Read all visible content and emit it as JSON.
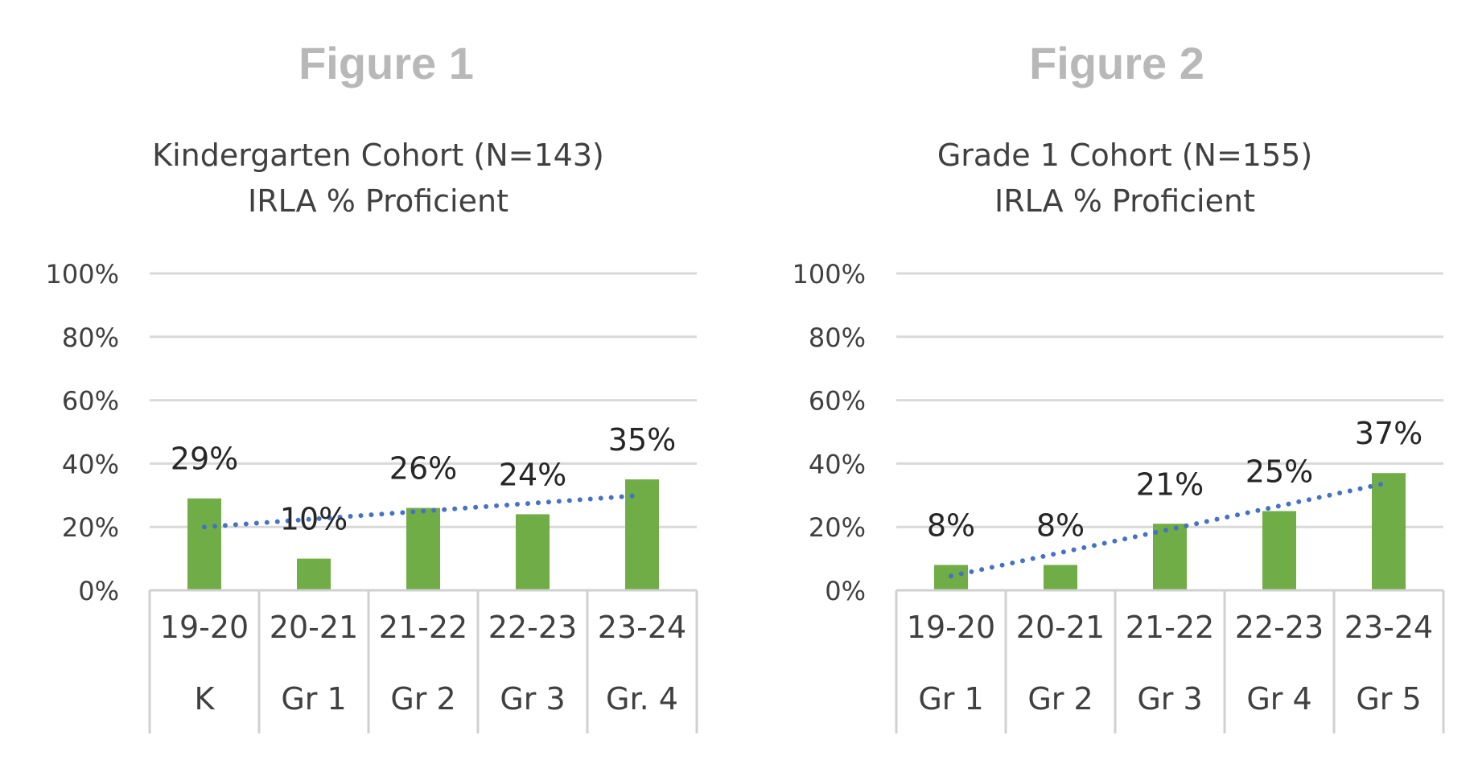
{
  "figures": [
    {
      "heading": "Figure 1",
      "colors": {
        "bar": "#70ad47",
        "trendline": "#4472c4",
        "grid": "#d9d9d9",
        "axis": "#d0d0d0"
      },
      "chart_data": {
        "type": "bar",
        "title": "Kindergarten Cohort (N=143)",
        "subtitle": "IRLA % Proficient",
        "categories": [
          "19-20",
          "20-21",
          "21-22",
          "22-23",
          "23-24"
        ],
        "category_sublabels": [
          "K",
          "Gr 1",
          "Gr 2",
          "Gr 3",
          "Gr. 4"
        ],
        "values": [
          29,
          10,
          26,
          24,
          35
        ],
        "data_labels": [
          "29%",
          "10%",
          "26%",
          "24%",
          "35%"
        ],
        "ylim": [
          0,
          100
        ],
        "yticks": [
          0,
          20,
          40,
          60,
          80,
          100
        ],
        "ytick_labels": [
          "0%",
          "20%",
          "40%",
          "60%",
          "80%",
          "100%"
        ],
        "trendline": {
          "type": "linear",
          "style": "dotted",
          "start": 20,
          "end": 30
        },
        "grid": true
      }
    },
    {
      "heading": "Figure 2",
      "colors": {
        "bar": "#70ad47",
        "trendline": "#4472c4",
        "grid": "#d9d9d9",
        "axis": "#d0d0d0"
      },
      "chart_data": {
        "type": "bar",
        "title": "Grade 1 Cohort (N=155)",
        "subtitle": "IRLA % Proficient",
        "categories": [
          "19-20",
          "20-21",
          "21-22",
          "22-23",
          "23-24"
        ],
        "category_sublabels": [
          "Gr 1",
          "Gr 2",
          "Gr 3",
          "Gr 4",
          "Gr 5"
        ],
        "values": [
          8,
          8,
          21,
          25,
          37
        ],
        "data_labels": [
          "8%",
          "8%",
          "21%",
          "25%",
          "37%"
        ],
        "ylim": [
          0,
          100
        ],
        "yticks": [
          0,
          20,
          40,
          60,
          80,
          100
        ],
        "ytick_labels": [
          "0%",
          "20%",
          "40%",
          "60%",
          "80%",
          "100%"
        ],
        "trendline": {
          "type": "linear",
          "style": "dotted",
          "start": 4.5,
          "end": 34
        },
        "grid": true
      }
    }
  ]
}
